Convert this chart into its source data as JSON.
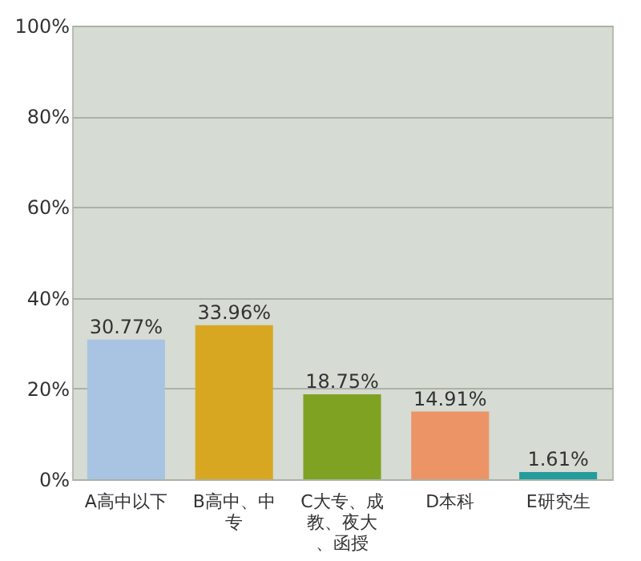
{
  "chart_data": {
    "type": "bar",
    "categories": [
      "A高中以下",
      "B高中、中专",
      "C大专、成教、夜大、函授",
      "D本科",
      "E研究生"
    ],
    "values": [
      30.77,
      33.96,
      18.75,
      14.91,
      1.61
    ],
    "colors": [
      "#a9c4e2",
      "#d8a722",
      "#7fa222",
      "#ec9466",
      "#239c9c"
    ],
    "value_labels": [
      "30.77%",
      "33.96%",
      "18.75%",
      "14.91%",
      "1.61%"
    ],
    "ylim": [
      0,
      100
    ],
    "yticks": [
      {
        "value": 0,
        "label": "0%"
      },
      {
        "value": 20,
        "label": "20%"
      },
      {
        "value": 40,
        "label": "40%"
      },
      {
        "value": 60,
        "label": "60%"
      },
      {
        "value": 80,
        "label": "80%"
      },
      {
        "value": 100,
        "label": "100%"
      }
    ],
    "grid": "y"
  }
}
